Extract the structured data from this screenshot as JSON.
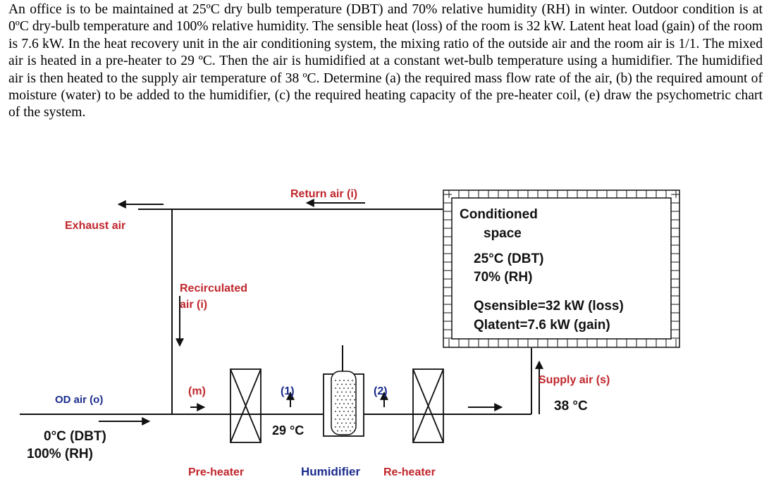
{
  "problem": {
    "text": "An office is to be maintained at 25ºC dry bulb temperature (DBT) and 70% relative humidity (RH) in winter. Outdoor condition is at 0ºC dry-bulb temperature and 100% relative humidity. The sensible heat (loss) of the room is 32 kW. Latent heat load (gain) of the room is 7.6 kW. In the heat recovery unit in the air conditioning system, the mixing ratio of the outside air and the room air is 1/1. The mixed air is heated in a pre-heater to 29 ºC. Then the air is humidified at a constant wet-bulb temperature using a humidifier. The humidified air is then heated to the supply air temperature of 38 ºC. Determine (a) the required mass flow rate of the air, (b) the required amount of moisture (water) to be added to the humidifier, (c) the required heating capacity of the pre-heater coil, (e) draw the psychometric chart of the system."
  },
  "diagram": {
    "return_air": "Return air (i)",
    "exhaust_air": "Exhaust air",
    "recirculated_line1": "Recirculated",
    "recirculated_line2": "air (i)",
    "conditioned_line1": "Conditioned",
    "conditioned_line2": "space",
    "room_dbt": "25°C (DBT)",
    "room_rh": "70% (RH)",
    "q_sensible": "Qsensible=32 kW (loss)",
    "q_latent": "Qlatent=7.6 kW (gain)",
    "supply_air": "Supply air (s)",
    "supply_temp": "38 °C",
    "od_air": "OD air (o)",
    "od_dbt": "0°C (DBT)",
    "od_rh": "100% (RH)",
    "mixed_label": "(m)",
    "point1_label": "(1)",
    "point1_temp": "29 °C",
    "point2_label": "(2)",
    "preheater": "Pre-heater",
    "humidifier": "Humidifier",
    "reheater": "Re-heater"
  },
  "colors": {
    "label_red": "#c0262c",
    "label_blue": "#1b2c8c",
    "line": "#111111"
  }
}
